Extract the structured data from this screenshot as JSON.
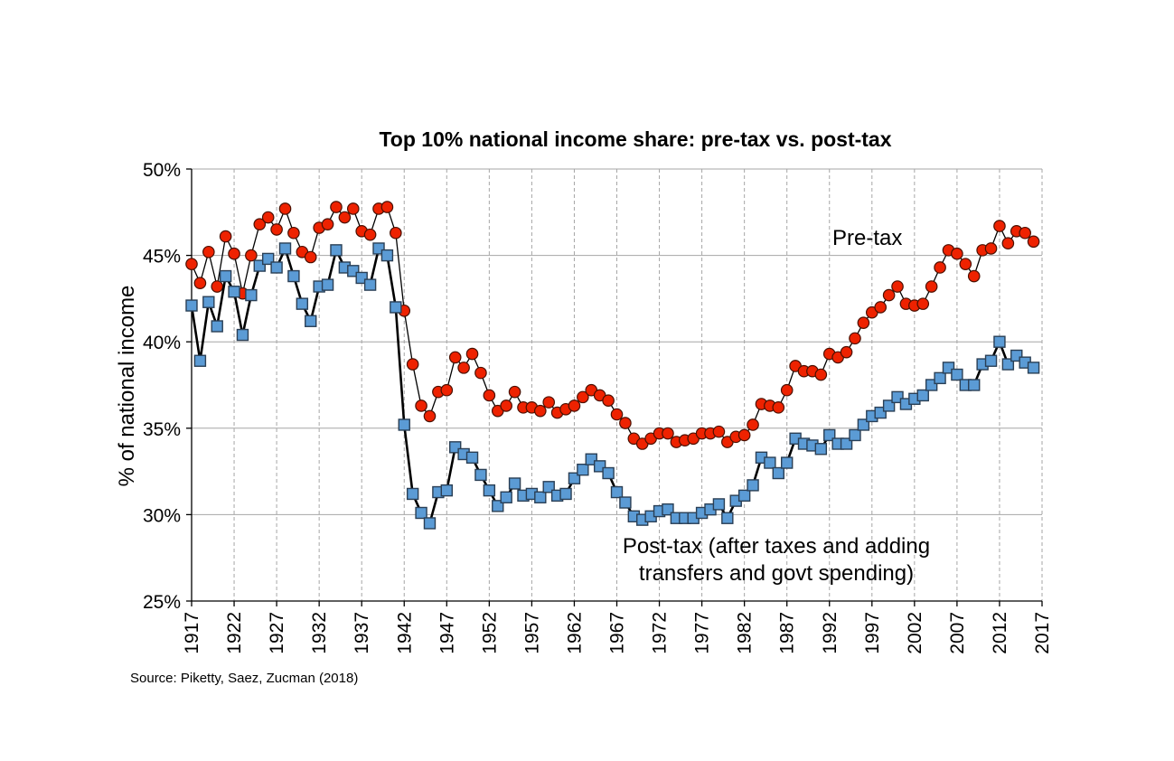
{
  "chart_data": {
    "type": "line",
    "title": "Top 10% national income share: pre-tax vs. post-tax",
    "ylabel": "% of national income",
    "xlabel": "",
    "ylim": [
      25,
      50
    ],
    "xlim": [
      1917,
      2017
    ],
    "y_ticks": [
      25,
      30,
      35,
      40,
      45,
      50
    ],
    "y_tick_labels": [
      "25%",
      "30%",
      "35%",
      "40%",
      "45%",
      "50%"
    ],
    "x_ticks": [
      1917,
      1922,
      1927,
      1932,
      1937,
      1942,
      1947,
      1952,
      1957,
      1962,
      1967,
      1972,
      1977,
      1982,
      1987,
      1992,
      1997,
      2002,
      2007,
      2012,
      2017
    ],
    "x_tick_labels": [
      "1917",
      "1922",
      "1927",
      "1932",
      "1937",
      "1942",
      "1947",
      "1952",
      "1957",
      "1962",
      "1967",
      "1972",
      "1977",
      "1982",
      "1987",
      "1992",
      "1997",
      "2002",
      "2007",
      "2012",
      "2017"
    ],
    "grid": true,
    "x": [
      1917,
      1918,
      1919,
      1920,
      1921,
      1922,
      1923,
      1924,
      1925,
      1926,
      1927,
      1928,
      1929,
      1930,
      1931,
      1932,
      1933,
      1934,
      1935,
      1936,
      1937,
      1938,
      1939,
      1940,
      1941,
      1942,
      1943,
      1944,
      1945,
      1946,
      1947,
      1948,
      1949,
      1950,
      1951,
      1952,
      1953,
      1954,
      1955,
      1956,
      1957,
      1958,
      1959,
      1960,
      1961,
      1962,
      1963,
      1964,
      1965,
      1966,
      1967,
      1968,
      1969,
      1970,
      1971,
      1972,
      1973,
      1974,
      1975,
      1976,
      1977,
      1978,
      1979,
      1980,
      1981,
      1982,
      1983,
      1984,
      1985,
      1986,
      1987,
      1988,
      1989,
      1990,
      1991,
      1992,
      1993,
      1994,
      1995,
      1996,
      1997,
      1998,
      1999,
      2000,
      2001,
      2002,
      2003,
      2004,
      2005,
      2006,
      2007,
      2008,
      2009,
      2010,
      2011,
      2012,
      2013,
      2014,
      2015,
      2016
    ],
    "series": [
      {
        "name": "Pre-tax",
        "color": "#ee2200",
        "marker": "circle",
        "values": [
          44.5,
          43.4,
          45.2,
          43.2,
          46.1,
          45.1,
          42.8,
          45.0,
          46.8,
          47.2,
          46.5,
          47.7,
          46.3,
          45.2,
          44.9,
          46.6,
          46.8,
          47.8,
          47.2,
          47.7,
          46.4,
          46.2,
          47.7,
          47.8,
          46.3,
          41.8,
          38.7,
          36.3,
          35.7,
          37.1,
          37.2,
          39.1,
          38.5,
          39.3,
          38.2,
          36.9,
          36.0,
          36.3,
          37.1,
          36.2,
          36.2,
          36.0,
          36.5,
          35.9,
          36.1,
          36.3,
          36.8,
          37.2,
          36.9,
          36.6,
          35.8,
          35.3,
          34.4,
          34.1,
          34.4,
          34.7,
          34.7,
          34.2,
          34.3,
          34.4,
          34.7,
          34.7,
          34.8,
          34.2,
          34.5,
          34.6,
          35.2,
          36.4,
          36.3,
          36.2,
          37.2,
          38.6,
          38.3,
          38.3,
          38.1,
          39.3,
          39.1,
          39.4,
          40.2,
          41.1,
          41.7,
          42.0,
          42.7,
          43.2,
          42.2,
          42.1,
          42.2,
          43.2,
          44.3,
          45.3,
          45.1,
          44.5,
          43.8,
          45.3,
          45.4,
          46.7,
          45.7,
          46.4,
          46.3,
          45.8
        ]
      },
      {
        "name": "Post-tax (after taxes and adding transfers and govt spending)",
        "color": "#5b9bd5",
        "marker": "square",
        "values": [
          42.1,
          38.9,
          42.3,
          40.9,
          43.8,
          42.9,
          40.4,
          42.7,
          44.4,
          44.8,
          44.3,
          45.4,
          43.8,
          42.2,
          41.2,
          43.2,
          43.3,
          45.3,
          44.3,
          44.1,
          43.7,
          43.3,
          45.4,
          45.0,
          42.0,
          35.2,
          31.2,
          30.1,
          29.5,
          31.3,
          31.4,
          33.9,
          33.5,
          33.3,
          32.3,
          31.4,
          30.5,
          31.0,
          31.8,
          31.1,
          31.2,
          31.0,
          31.6,
          31.1,
          31.2,
          32.1,
          32.6,
          33.2,
          32.8,
          32.4,
          31.3,
          30.7,
          29.9,
          29.7,
          29.9,
          30.2,
          30.3,
          29.8,
          29.8,
          29.8,
          30.1,
          30.3,
          30.6,
          29.8,
          30.8,
          31.1,
          31.7,
          33.3,
          33.0,
          32.4,
          33.0,
          34.4,
          34.1,
          34.0,
          33.8,
          34.6,
          34.1,
          34.1,
          34.6,
          35.2,
          35.7,
          35.9,
          36.3,
          36.8,
          36.4,
          36.7,
          36.9,
          37.5,
          37.9,
          38.5,
          38.1,
          37.5,
          37.5,
          38.7,
          38.9,
          40.0,
          38.7,
          39.2,
          38.8,
          38.5
        ]
      }
    ],
    "annotations": [
      {
        "id": "pretax",
        "lines": [
          "Pre-tax"
        ]
      },
      {
        "id": "posttax",
        "lines": [
          "Post-tax (after taxes and adding",
          "transfers and govt spending)"
        ]
      }
    ],
    "source": "Source: Piketty, Saez, Zucman (2018)"
  }
}
